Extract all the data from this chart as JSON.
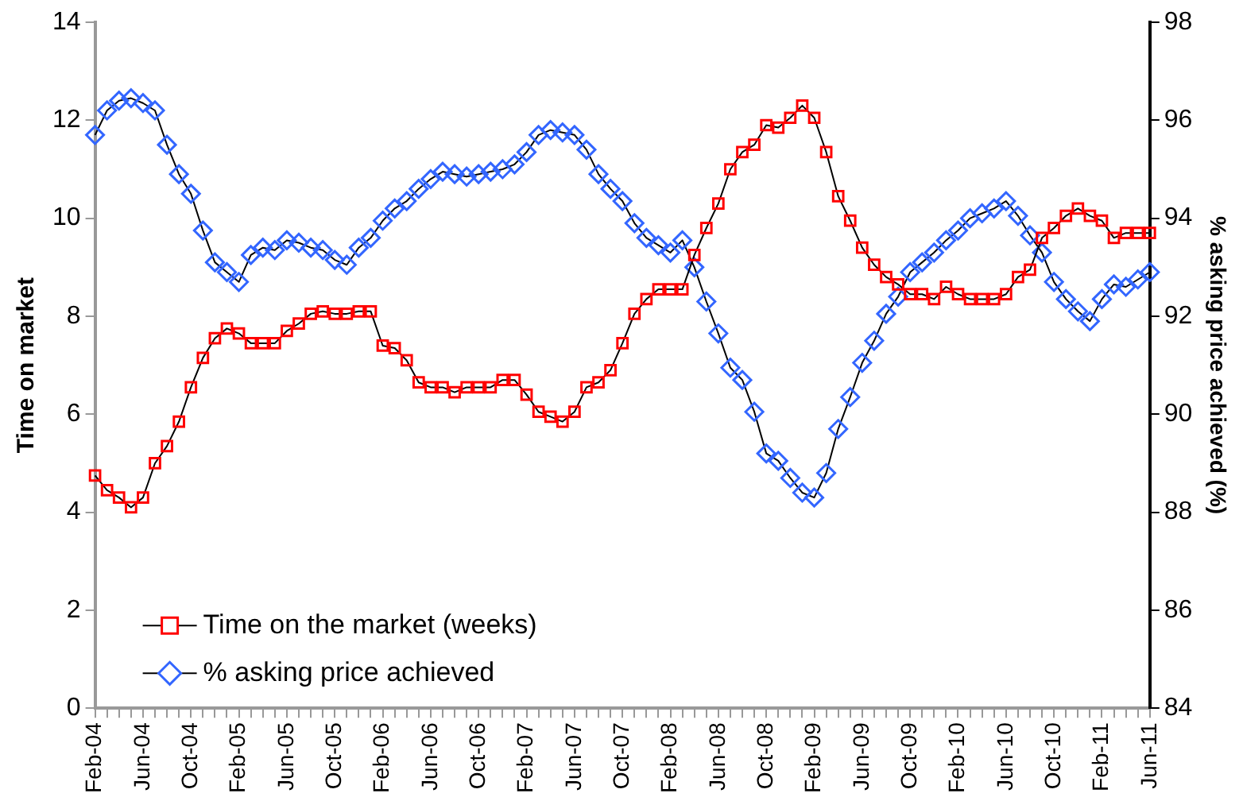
{
  "chart_data": {
    "type": "line",
    "ylabel": "Time on market",
    "y2label": "% asking price achieved (%)",
    "categories": [
      "Feb-04",
      null,
      null,
      null,
      "Jun-04",
      null,
      null,
      null,
      "Oct-04",
      null,
      null,
      null,
      "Feb-05",
      null,
      null,
      null,
      "Jun-05",
      null,
      null,
      null,
      "Oct-05",
      null,
      null,
      null,
      "Feb-06",
      null,
      null,
      null,
      "Jun-06",
      null,
      null,
      null,
      "Oct-06",
      null,
      null,
      null,
      "Feb-07",
      null,
      null,
      null,
      "Jun-07",
      null,
      null,
      null,
      "Oct-07",
      null,
      null,
      null,
      "Feb-08",
      null,
      null,
      null,
      "Jun-08",
      null,
      null,
      null,
      "Oct-08",
      null,
      null,
      null,
      "Feb-09",
      null,
      null,
      null,
      "Jun-09",
      null,
      null,
      null,
      "Oct-09",
      null,
      null,
      null,
      "Feb-10",
      null,
      null,
      null,
      "Jun-10",
      null,
      null,
      null,
      "Oct-10",
      null,
      null,
      null,
      "Feb-11",
      null,
      null,
      null,
      "Jun-11"
    ],
    "series": [
      {
        "name": "Time on the market (weeks)",
        "color": "#ff0000",
        "marker": "square",
        "values": [
          4.75,
          4.45,
          4.3,
          4.1,
          4.3,
          5.0,
          5.35,
          5.85,
          6.55,
          7.15,
          7.55,
          7.75,
          7.65,
          7.45,
          7.45,
          7.45,
          7.7,
          7.85,
          8.05,
          8.1,
          8.05,
          8.05,
          8.1,
          8.1,
          7.4,
          7.35,
          7.1,
          6.65,
          6.55,
          6.55,
          6.45,
          6.55,
          6.55,
          6.55,
          6.7,
          6.7,
          6.4,
          6.05,
          5.95,
          5.85,
          6.05,
          6.55,
          6.65,
          6.9,
          7.45,
          8.05,
          8.35,
          8.55,
          8.55,
          8.55,
          9.25,
          9.8,
          10.3,
          11.0,
          11.35,
          11.5,
          11.9,
          11.85,
          12.05,
          12.3,
          12.05,
          11.35,
          10.45,
          9.95,
          9.4,
          9.05,
          8.8,
          8.65,
          8.45,
          8.45,
          8.35,
          8.6,
          8.45,
          8.35,
          8.35,
          8.35,
          8.45,
          8.8,
          8.95,
          9.6,
          9.8,
          10.05,
          10.2,
          10.05,
          9.95,
          9.6,
          9.7,
          9.7,
          9.7
        ]
      },
      {
        "name": "% asking price achieved",
        "color": "#3366ff",
        "marker": "diamond",
        "axis": "y2",
        "values": [
          95.7,
          96.2,
          96.4,
          96.45,
          96.35,
          96.2,
          95.5,
          94.9,
          94.5,
          93.75,
          93.1,
          92.9,
          92.7,
          93.25,
          93.4,
          93.35,
          93.55,
          93.5,
          93.4,
          93.35,
          93.15,
          93.05,
          93.4,
          93.6,
          93.95,
          94.2,
          94.35,
          94.6,
          94.8,
          94.95,
          94.9,
          94.85,
          94.9,
          94.95,
          95.0,
          95.1,
          95.35,
          95.7,
          95.8,
          95.75,
          95.7,
          95.4,
          94.9,
          94.6,
          94.35,
          93.9,
          93.6,
          93.45,
          93.3,
          93.55,
          93.0,
          92.3,
          91.65,
          90.95,
          90.7,
          90.05,
          89.2,
          89.05,
          88.7,
          88.4,
          88.3,
          88.8,
          89.7,
          90.35,
          91.05,
          91.5,
          92.05,
          92.4,
          92.9,
          93.1,
          93.3,
          93.55,
          93.75,
          94.0,
          94.1,
          94.2,
          94.35,
          94.05,
          93.65,
          93.3,
          92.7,
          92.35,
          92.1,
          91.9,
          92.35,
          92.65,
          92.6,
          92.75,
          92.9
        ]
      }
    ],
    "ylim": [
      0,
      14
    ],
    "yticks": [
      0,
      2,
      4,
      6,
      8,
      10,
      12,
      14
    ],
    "y2lim": [
      84,
      98
    ],
    "y2ticks": [
      84,
      86,
      88,
      90,
      92,
      94,
      96,
      98
    ],
    "legend": "bottom left",
    "line_style": "solid"
  }
}
